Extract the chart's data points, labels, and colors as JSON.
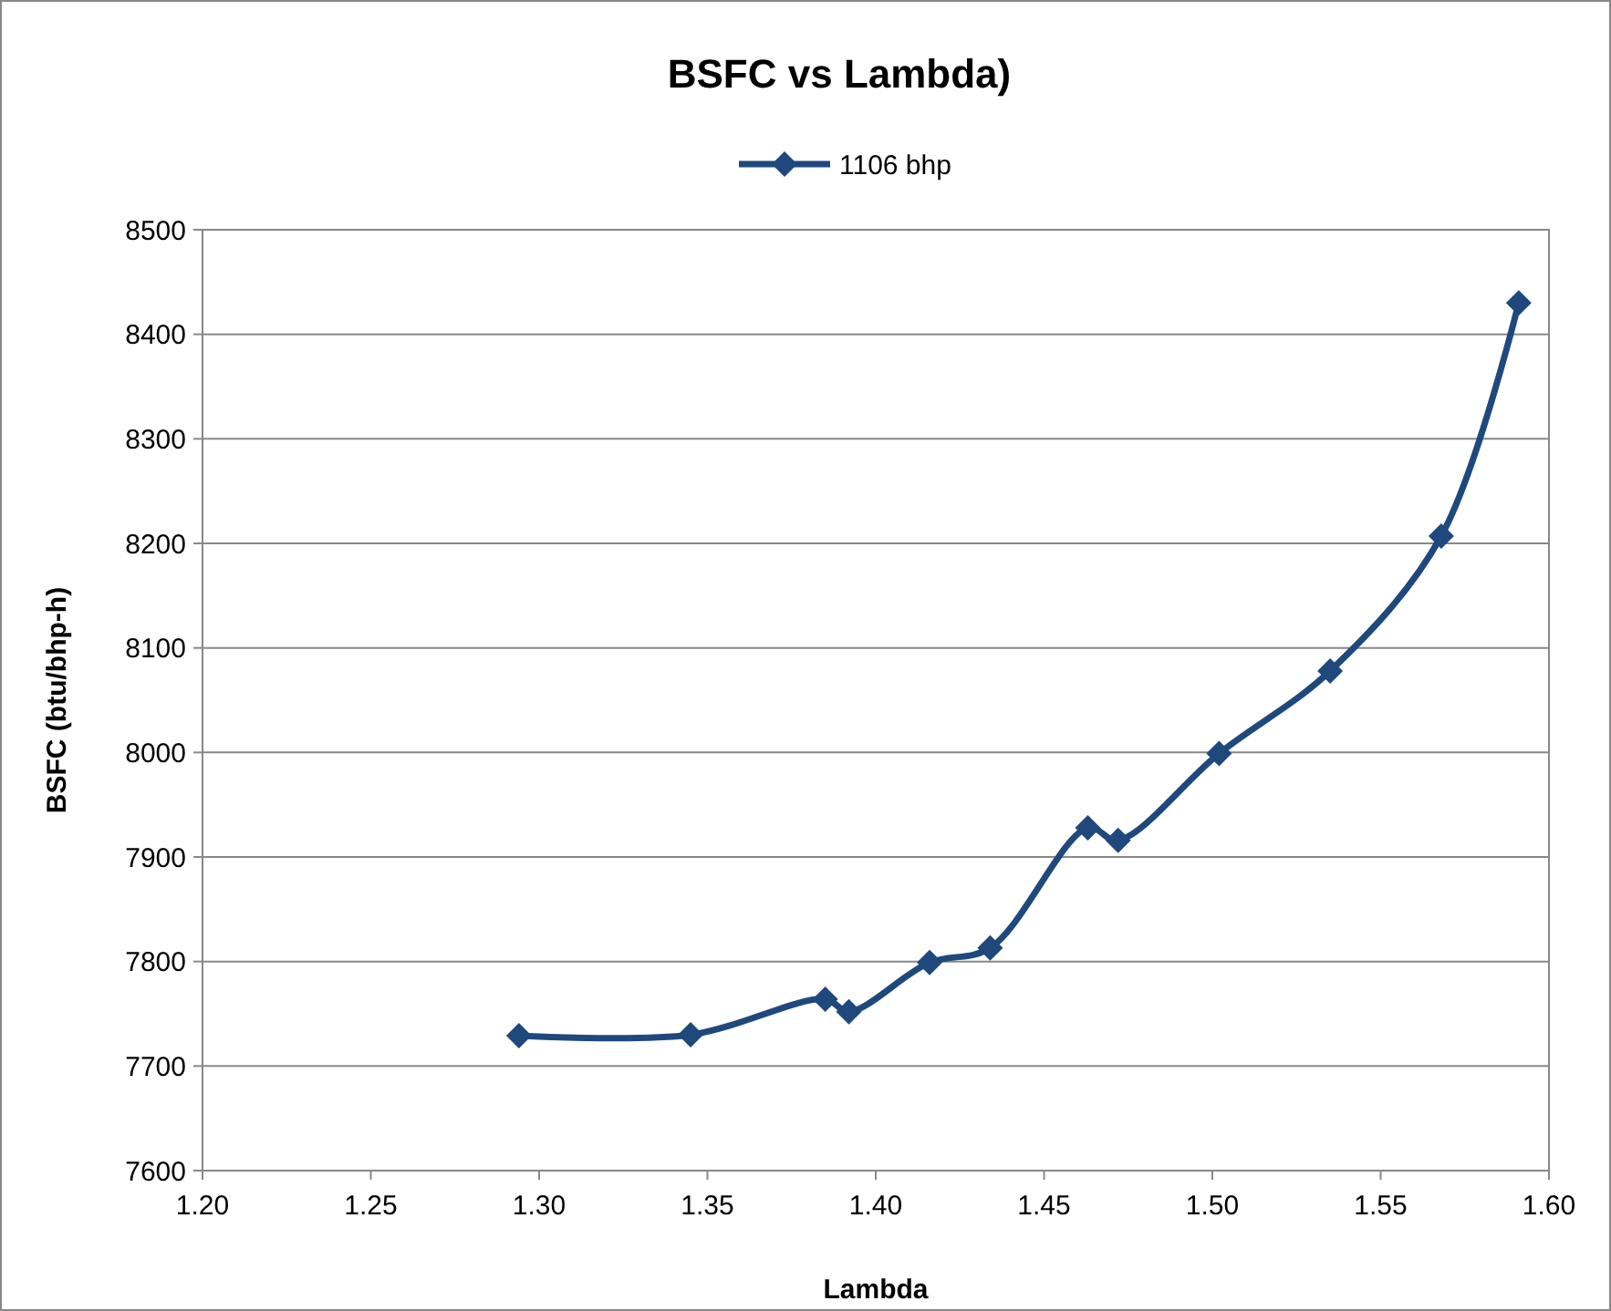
{
  "chart_data": {
    "type": "line",
    "title": "BSFC vs Lambda)",
    "xlabel": "Lambda",
    "ylabel": "BSFC (btu/bhp-h)",
    "series": [
      {
        "name": "1106 bhp",
        "color": "#1f497d",
        "x": [
          1.294,
          1.345,
          1.385,
          1.392,
          1.416,
          1.434,
          1.463,
          1.472,
          1.502,
          1.535,
          1.568,
          1.591
        ],
        "values": [
          7729,
          7730,
          7764,
          7752,
          7799,
          7813,
          7928,
          7916,
          7999,
          8078,
          8207,
          8430
        ]
      }
    ],
    "xlim": [
      1.2,
      1.6
    ],
    "xticks": [
      {
        "value": 1.2,
        "label": "1.20"
      },
      {
        "value": 1.25,
        "label": "1.25"
      },
      {
        "value": 1.3,
        "label": "1.30"
      },
      {
        "value": 1.35,
        "label": "1.35"
      },
      {
        "value": 1.4,
        "label": "1.40"
      },
      {
        "value": 1.45,
        "label": "1.45"
      },
      {
        "value": 1.5,
        "label": "1.50"
      },
      {
        "value": 1.55,
        "label": "1.55"
      },
      {
        "value": 1.6,
        "label": "1.60"
      }
    ],
    "ylim": [
      7600,
      8500
    ],
    "yticks": [
      7600,
      7700,
      7800,
      7900,
      8000,
      8100,
      8200,
      8300,
      8400,
      8500
    ],
    "grid": "y",
    "legend": "top",
    "marker": "diamond",
    "line_style": "solid"
  }
}
